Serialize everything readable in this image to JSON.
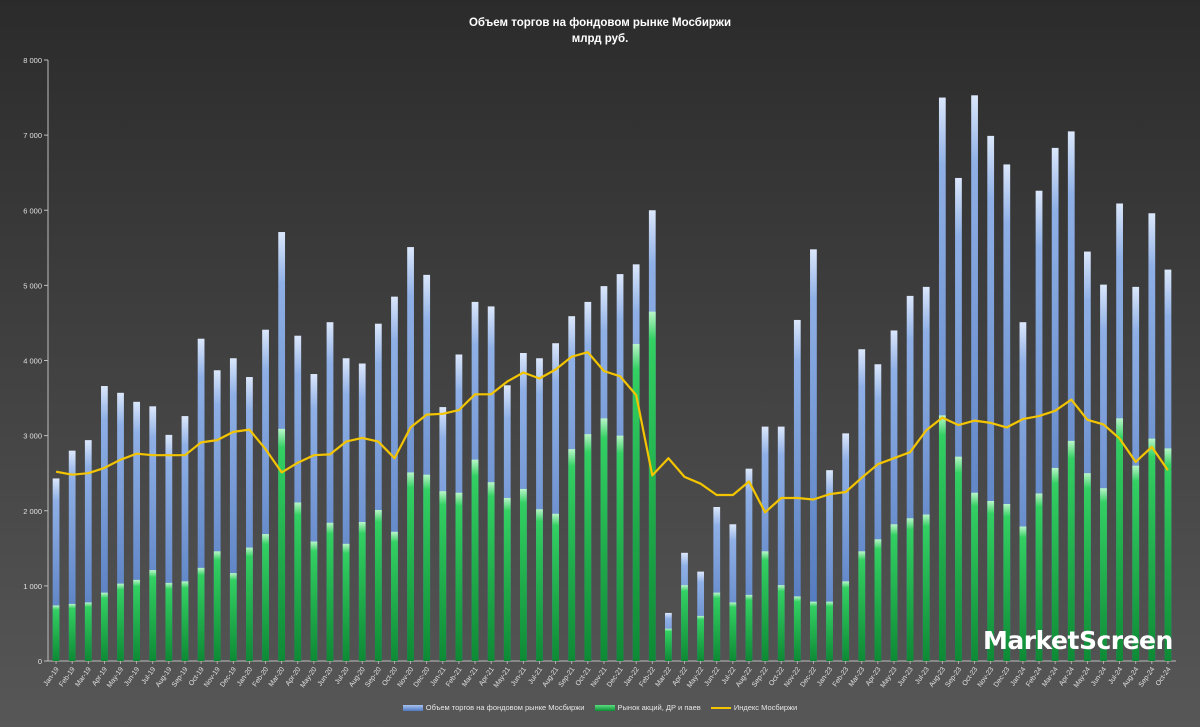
{
  "chart_data": {
    "type": "bar+line",
    "title": "Объем торгов на фондовом рынке Мосбиржи",
    "subtitle": "млрд руб.",
    "ylim": [
      0,
      8000
    ],
    "yticks": [
      0,
      1000,
      2000,
      3000,
      4000,
      5000,
      6000,
      7000,
      8000
    ],
    "ytick_labels": [
      "0",
      "1 000",
      "2 000",
      "3 000",
      "4 000",
      "5 000",
      "6 000",
      "7 000",
      "8 000"
    ],
    "grid": false,
    "legend_position": "bottom",
    "categories": [
      "Jan-19",
      "Feb-19",
      "Mar-19",
      "Apr-19",
      "May-19",
      "Jun-19",
      "Jul-19",
      "Aug-19",
      "Sep-19",
      "Oct-19",
      "Nov-19",
      "Dec-19",
      "Jan-20",
      "Feb-20",
      "Mar-20",
      "Apr-20",
      "May-20",
      "Jun-20",
      "Jul-20",
      "Aug-20",
      "Sep-20",
      "Oct-20",
      "Nov-20",
      "Dec-20",
      "Jan-21",
      "Feb-21",
      "Mar-21",
      "Apr-21",
      "May-21",
      "Jun-21",
      "Jul-21",
      "Aug-21",
      "Sep-21",
      "Oct-21",
      "Nov-21",
      "Dec-21",
      "Jan-22",
      "Feb-22",
      "Mar-22",
      "Apr-22",
      "May-22",
      "Jun-22",
      "Jul-22",
      "Aug-22",
      "Sep-22",
      "Oct-22",
      "Nov-22",
      "Dec-22",
      "Jan-23",
      "Feb-23",
      "Mar-23",
      "Apr-23",
      "May-23",
      "Jun-23",
      "Jul-23",
      "Aug-23",
      "Sep-23",
      "Oct-23",
      "Nov-23",
      "Dec-23",
      "Jan-24",
      "Feb-24",
      "Mar-24",
      "Apr-24",
      "May-24",
      "Jun-24",
      "Jul-24",
      "Aug-24",
      "Sep-24",
      "Oct-24"
    ],
    "series": [
      {
        "name": "Объем торгов на фондовом рынке Мосбиржи",
        "kind": "bar",
        "color": "#6f95d3",
        "values": [
          2430,
          2800,
          2940,
          3660,
          3570,
          3450,
          3390,
          3010,
          3260,
          4290,
          3870,
          4030,
          3780,
          4410,
          5710,
          4330,
          3820,
          4510,
          4030,
          3960,
          4490,
          4850,
          5510,
          5140,
          3380,
          4080,
          4780,
          4720,
          3670,
          4100,
          4030,
          4230,
          4590,
          4780,
          4990,
          5150,
          5280,
          6000,
          640,
          1440,
          1190,
          2050,
          1820,
          2560,
          3120,
          3120,
          4540,
          5480,
          2540,
          3030,
          4150,
          3950,
          4400,
          4860,
          4980,
          7500,
          6430,
          7530,
          6990,
          6610,
          4510,
          6260,
          6830,
          7050,
          5450,
          5010,
          6090,
          4980,
          5960,
          5210
        ]
      },
      {
        "name": "Рынок акций, ДР и паев",
        "kind": "bar",
        "color": "#1bb34c",
        "values": [
          740,
          760,
          780,
          910,
          1030,
          1080,
          1210,
          1040,
          1060,
          1240,
          1460,
          1170,
          1510,
          1690,
          3090,
          2110,
          1590,
          1840,
          1560,
          1850,
          2010,
          1720,
          2510,
          2480,
          2260,
          2240,
          2680,
          2380,
          2170,
          2290,
          2020,
          1960,
          2820,
          3020,
          3230,
          3000,
          4220,
          4650,
          430,
          1010,
          600,
          910,
          780,
          880,
          1460,
          1010,
          860,
          790,
          790,
          1060,
          1460,
          1620,
          1820,
          1900,
          1950,
          3270,
          2720,
          2240,
          2130,
          2090,
          1790,
          2230,
          2570,
          2930,
          2500,
          2300,
          3230,
          2600,
          2960,
          2830
        ]
      },
      {
        "name": "Индекс Мосбиржи",
        "kind": "line",
        "color": "#f3c400",
        "values": [
          2520,
          2480,
          2500,
          2570,
          2680,
          2760,
          2740,
          2740,
          2740,
          2910,
          2940,
          3050,
          3080,
          2820,
          2510,
          2640,
          2740,
          2750,
          2920,
          2970,
          2920,
          2700,
          3110,
          3280,
          3290,
          3340,
          3550,
          3550,
          3720,
          3840,
          3760,
          3880,
          4050,
          4110,
          3860,
          3790,
          3540,
          2470,
          2700,
          2450,
          2360,
          2210,
          2210,
          2390,
          1980,
          2170,
          2170,
          2150,
          2220,
          2250,
          2440,
          2620,
          2700,
          2780,
          3070,
          3240,
          3140,
          3200,
          3170,
          3110,
          3220,
          3260,
          3330,
          3480,
          3210,
          3150,
          2960,
          2650,
          2850,
          2540
        ]
      }
    ]
  },
  "legend": {
    "items": [
      "Объем торгов на фондовом рынке Мосбиржи",
      "Рынок акций, ДР и паев",
      "Индекс Мосбиржи"
    ]
  },
  "watermark": "MarketScreen",
  "colors": {
    "background_top": "#2b2b2b",
    "background_bottom": "#575757",
    "axis_text": "#e0e0e0",
    "axis_line": "#bdbdbd"
  }
}
